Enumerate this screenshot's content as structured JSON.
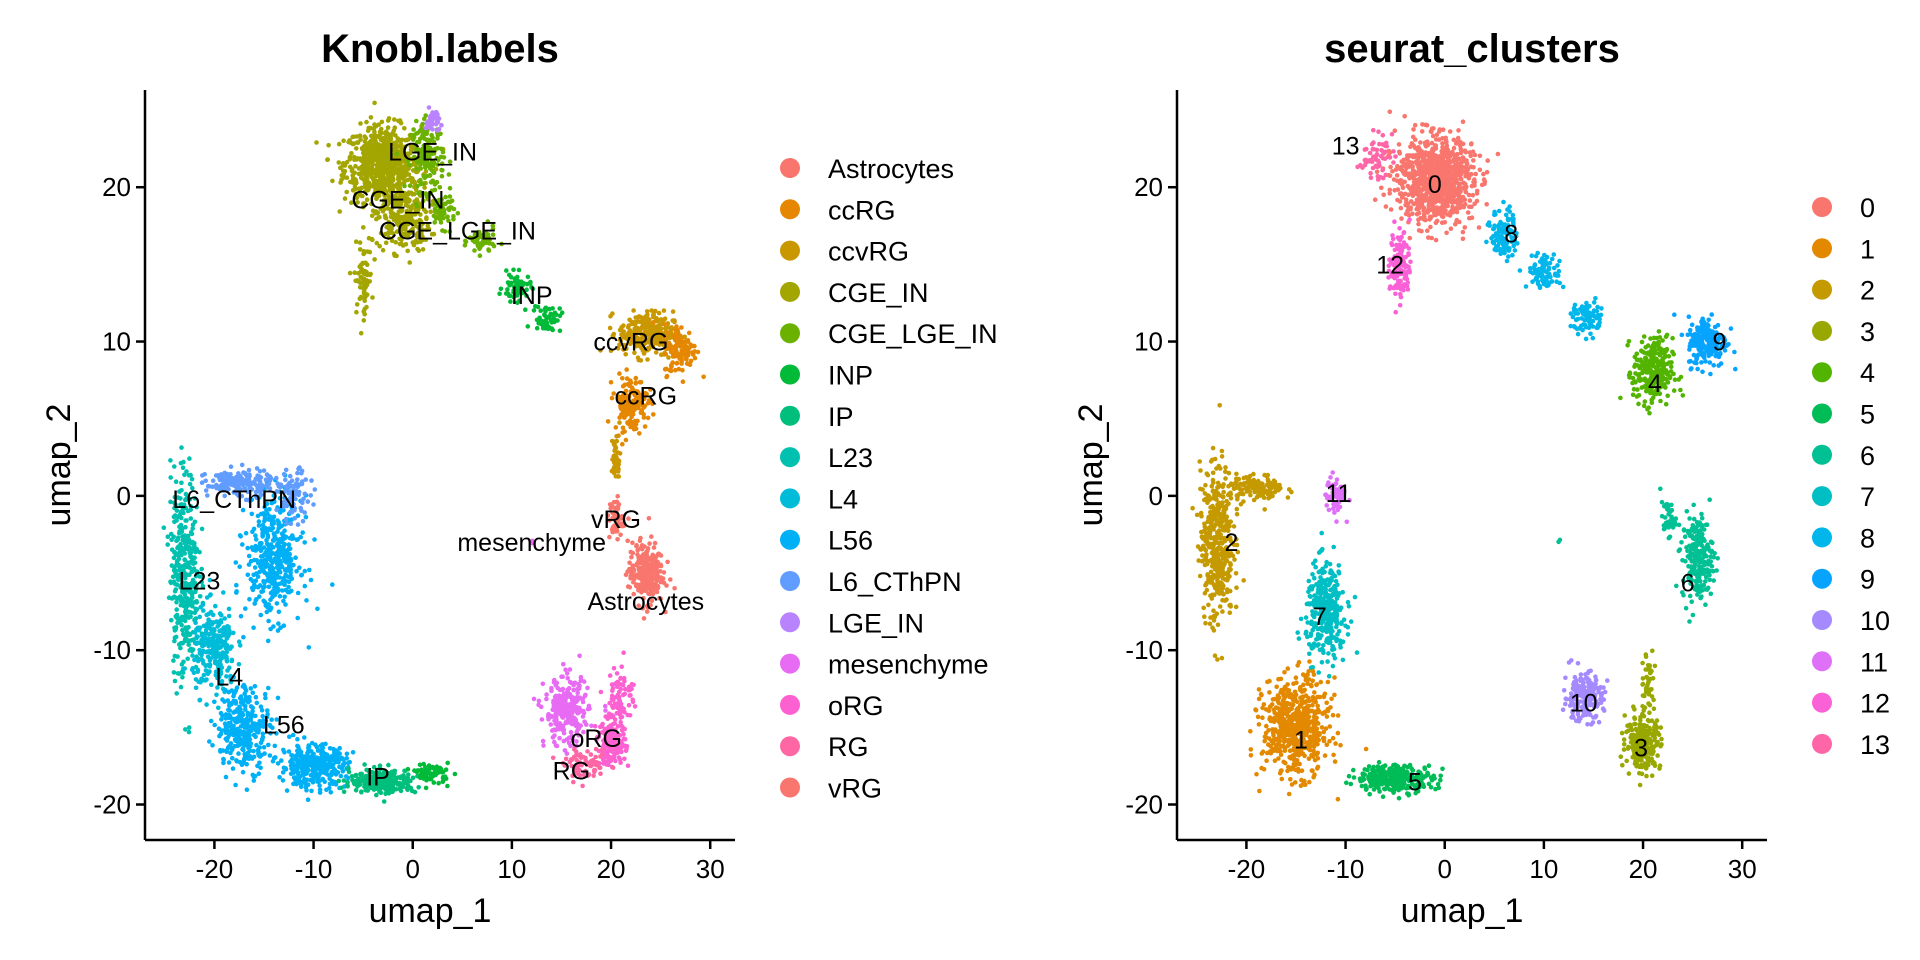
{
  "chart_data": [
    {
      "type": "scatter",
      "title": "Knobl.labels",
      "xlabel": "umap_1",
      "ylabel": "umap_2",
      "xlim": [
        -27,
        32.5
      ],
      "ylim": [
        -22.3,
        26.3
      ],
      "xticks": [
        -20,
        -10,
        0,
        10,
        20,
        30
      ],
      "yticks": [
        -20,
        -10,
        0,
        10,
        20
      ],
      "xtick_labels": [
        "-20",
        "-10",
        "0",
        "10",
        "20",
        "30"
      ],
      "ytick_labels": [
        "-20",
        "-10",
        "0",
        "10",
        "20"
      ],
      "grid": false,
      "legend_position": "right",
      "legend": [
        {
          "name": "Astrocytes",
          "color": "#F8766D"
        },
        {
          "name": "ccRG",
          "color": "#E58700"
        },
        {
          "name": "ccvRG",
          "color": "#C99800"
        },
        {
          "name": "CGE_IN",
          "color": "#A3A500"
        },
        {
          "name": "CGE_LGE_IN",
          "color": "#6BB100"
        },
        {
          "name": "INP",
          "color": "#00BA38"
        },
        {
          "name": "IP",
          "color": "#00BF7D"
        },
        {
          "name": "L23",
          "color": "#00C0AF"
        },
        {
          "name": "L4",
          "color": "#00BCD8"
        },
        {
          "name": "L56",
          "color": "#00B0F6"
        },
        {
          "name": "L6_CThPN",
          "color": "#619CFF"
        },
        {
          "name": "LGE_IN",
          "color": "#B983FF"
        },
        {
          "name": "mesenchyme",
          "color": "#E76BF3"
        },
        {
          "name": "oRG",
          "color": "#FD61D1"
        },
        {
          "name": "RG",
          "color": "#FF67A4"
        },
        {
          "name": "vRG",
          "color": "#F8766D"
        }
      ],
      "labels": [
        {
          "text": "LGE_IN",
          "x": 2,
          "y": 22.3
        },
        {
          "text": "CGE_IN",
          "x": -1.5,
          "y": 19.2
        },
        {
          "text": "CGE_LGE_IN",
          "x": 4.5,
          "y": 17.2
        },
        {
          "text": "INP",
          "x": 12,
          "y": 13
        },
        {
          "text": "ccvRG",
          "x": 22,
          "y": 10
        },
        {
          "text": "ccRG",
          "x": 23.5,
          "y": 6.5
        },
        {
          "text": "L6_CThPN",
          "x": -18,
          "y": -0.2
        },
        {
          "text": "vRG",
          "x": 20.5,
          "y": -1.5
        },
        {
          "text": "mesenchyme",
          "x": 12,
          "y": -3
        },
        {
          "text": "L23",
          "x": -21.5,
          "y": -5.5
        },
        {
          "text": "Astrocytes",
          "x": 23.5,
          "y": -6.8
        },
        {
          "text": "L4",
          "x": -18.5,
          "y": -11.7
        },
        {
          "text": "L56",
          "x": -13,
          "y": -14.8
        },
        {
          "text": "oRG",
          "x": 18.5,
          "y": -15.7
        },
        {
          "text": "RG",
          "x": 16,
          "y": -17.8
        },
        {
          "text": "IP",
          "x": -3.5,
          "y": -18.2
        }
      ]
    },
    {
      "type": "scatter",
      "title": "seurat_clusters",
      "xlabel": "umap_1",
      "ylabel": "umap_2",
      "xlim": [
        -27,
        32.5
      ],
      "ylim": [
        -22.3,
        26.3
      ],
      "xticks": [
        -20,
        -10,
        0,
        10,
        20,
        30
      ],
      "yticks": [
        -20,
        -10,
        0,
        10,
        20
      ],
      "xtick_labels": [
        "-20",
        "-10",
        "0",
        "10",
        "20",
        "30"
      ],
      "ytick_labels": [
        "-20",
        "-10",
        "0",
        "10",
        "20"
      ],
      "grid": false,
      "legend_position": "right",
      "legend": [
        {
          "name": "0",
          "color": "#F8766D"
        },
        {
          "name": "1",
          "color": "#E38900"
        },
        {
          "name": "2",
          "color": "#C49A00"
        },
        {
          "name": "3",
          "color": "#99A800"
        },
        {
          "name": "4",
          "color": "#53B400"
        },
        {
          "name": "5",
          "color": "#00BC56"
        },
        {
          "name": "6",
          "color": "#00C094"
        },
        {
          "name": "7",
          "color": "#00BFC4"
        },
        {
          "name": "8",
          "color": "#00B6EB"
        },
        {
          "name": "9",
          "color": "#06A4FF"
        },
        {
          "name": "10",
          "color": "#A58AFF"
        },
        {
          "name": "11",
          "color": "#DF70F8"
        },
        {
          "name": "12",
          "color": "#FB61D7"
        },
        {
          "name": "13",
          "color": "#FF66A8"
        }
      ],
      "labels": [
        {
          "text": "13",
          "x": -10,
          "y": 22.7
        },
        {
          "text": "0",
          "x": -1,
          "y": 20.2
        },
        {
          "text": "8",
          "x": 6.7,
          "y": 17
        },
        {
          "text": "12",
          "x": -5.5,
          "y": 15
        },
        {
          "text": "9",
          "x": 27.7,
          "y": 10
        },
        {
          "text": "4",
          "x": 21.2,
          "y": 7.3
        },
        {
          "text": "11",
          "x": -10.7,
          "y": 0.2
        },
        {
          "text": "2",
          "x": -21.5,
          "y": -3
        },
        {
          "text": "6",
          "x": 24.5,
          "y": -5.6
        },
        {
          "text": "7",
          "x": -12.6,
          "y": -7.8
        },
        {
          "text": "10",
          "x": 14,
          "y": -13.4
        },
        {
          "text": "1",
          "x": -14.5,
          "y": -15.8
        },
        {
          "text": "3",
          "x": 19.8,
          "y": -16.3
        },
        {
          "text": "5",
          "x": -3,
          "y": -18.5
        }
      ]
    }
  ]
}
